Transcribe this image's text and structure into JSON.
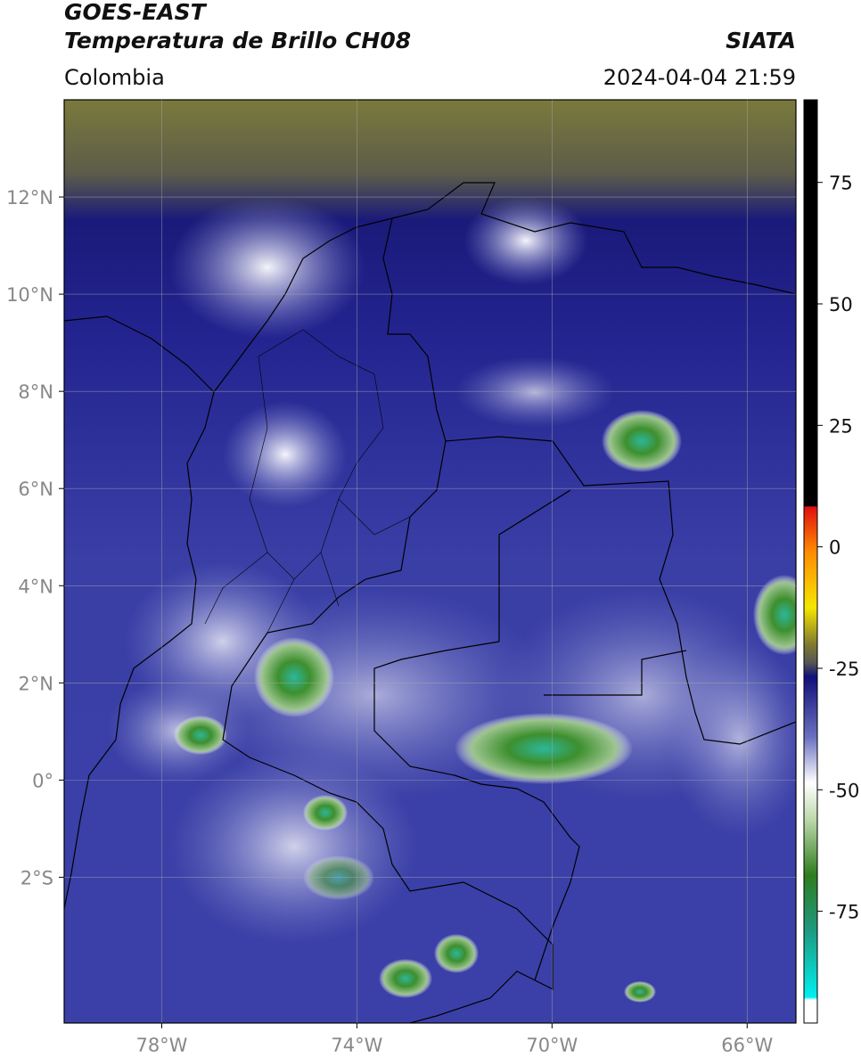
{
  "header": {
    "title": "GOES-EAST",
    "subtitle": "Temperatura de Brillo CH08",
    "source": "SIATA",
    "region": "Colombia",
    "timestamp": "2024-04-04 21:59"
  },
  "map": {
    "xlim": [
      -80,
      -65
    ],
    "ylim": [
      -5,
      14
    ],
    "xticks": [
      {
        "value": -78,
        "label": "78°W"
      },
      {
        "value": -74,
        "label": "74°W"
      },
      {
        "value": -70,
        "label": "70°W"
      },
      {
        "value": -66,
        "label": "66°W"
      }
    ],
    "yticks": [
      {
        "value": 12,
        "label": "12°N"
      },
      {
        "value": 10,
        "label": "10°N"
      },
      {
        "value": 8,
        "label": "8°N"
      },
      {
        "value": 6,
        "label": "6°N"
      },
      {
        "value": 4,
        "label": "4°N"
      },
      {
        "value": 2,
        "label": "2°N"
      },
      {
        "value": 0,
        "label": "0°"
      },
      {
        "value": -2,
        "label": "2°S"
      }
    ],
    "grid": true
  },
  "colorbar": {
    "clim": [
      -98,
      92
    ],
    "ticks": [
      75,
      50,
      25,
      0,
      -25,
      -50,
      -75
    ]
  }
}
